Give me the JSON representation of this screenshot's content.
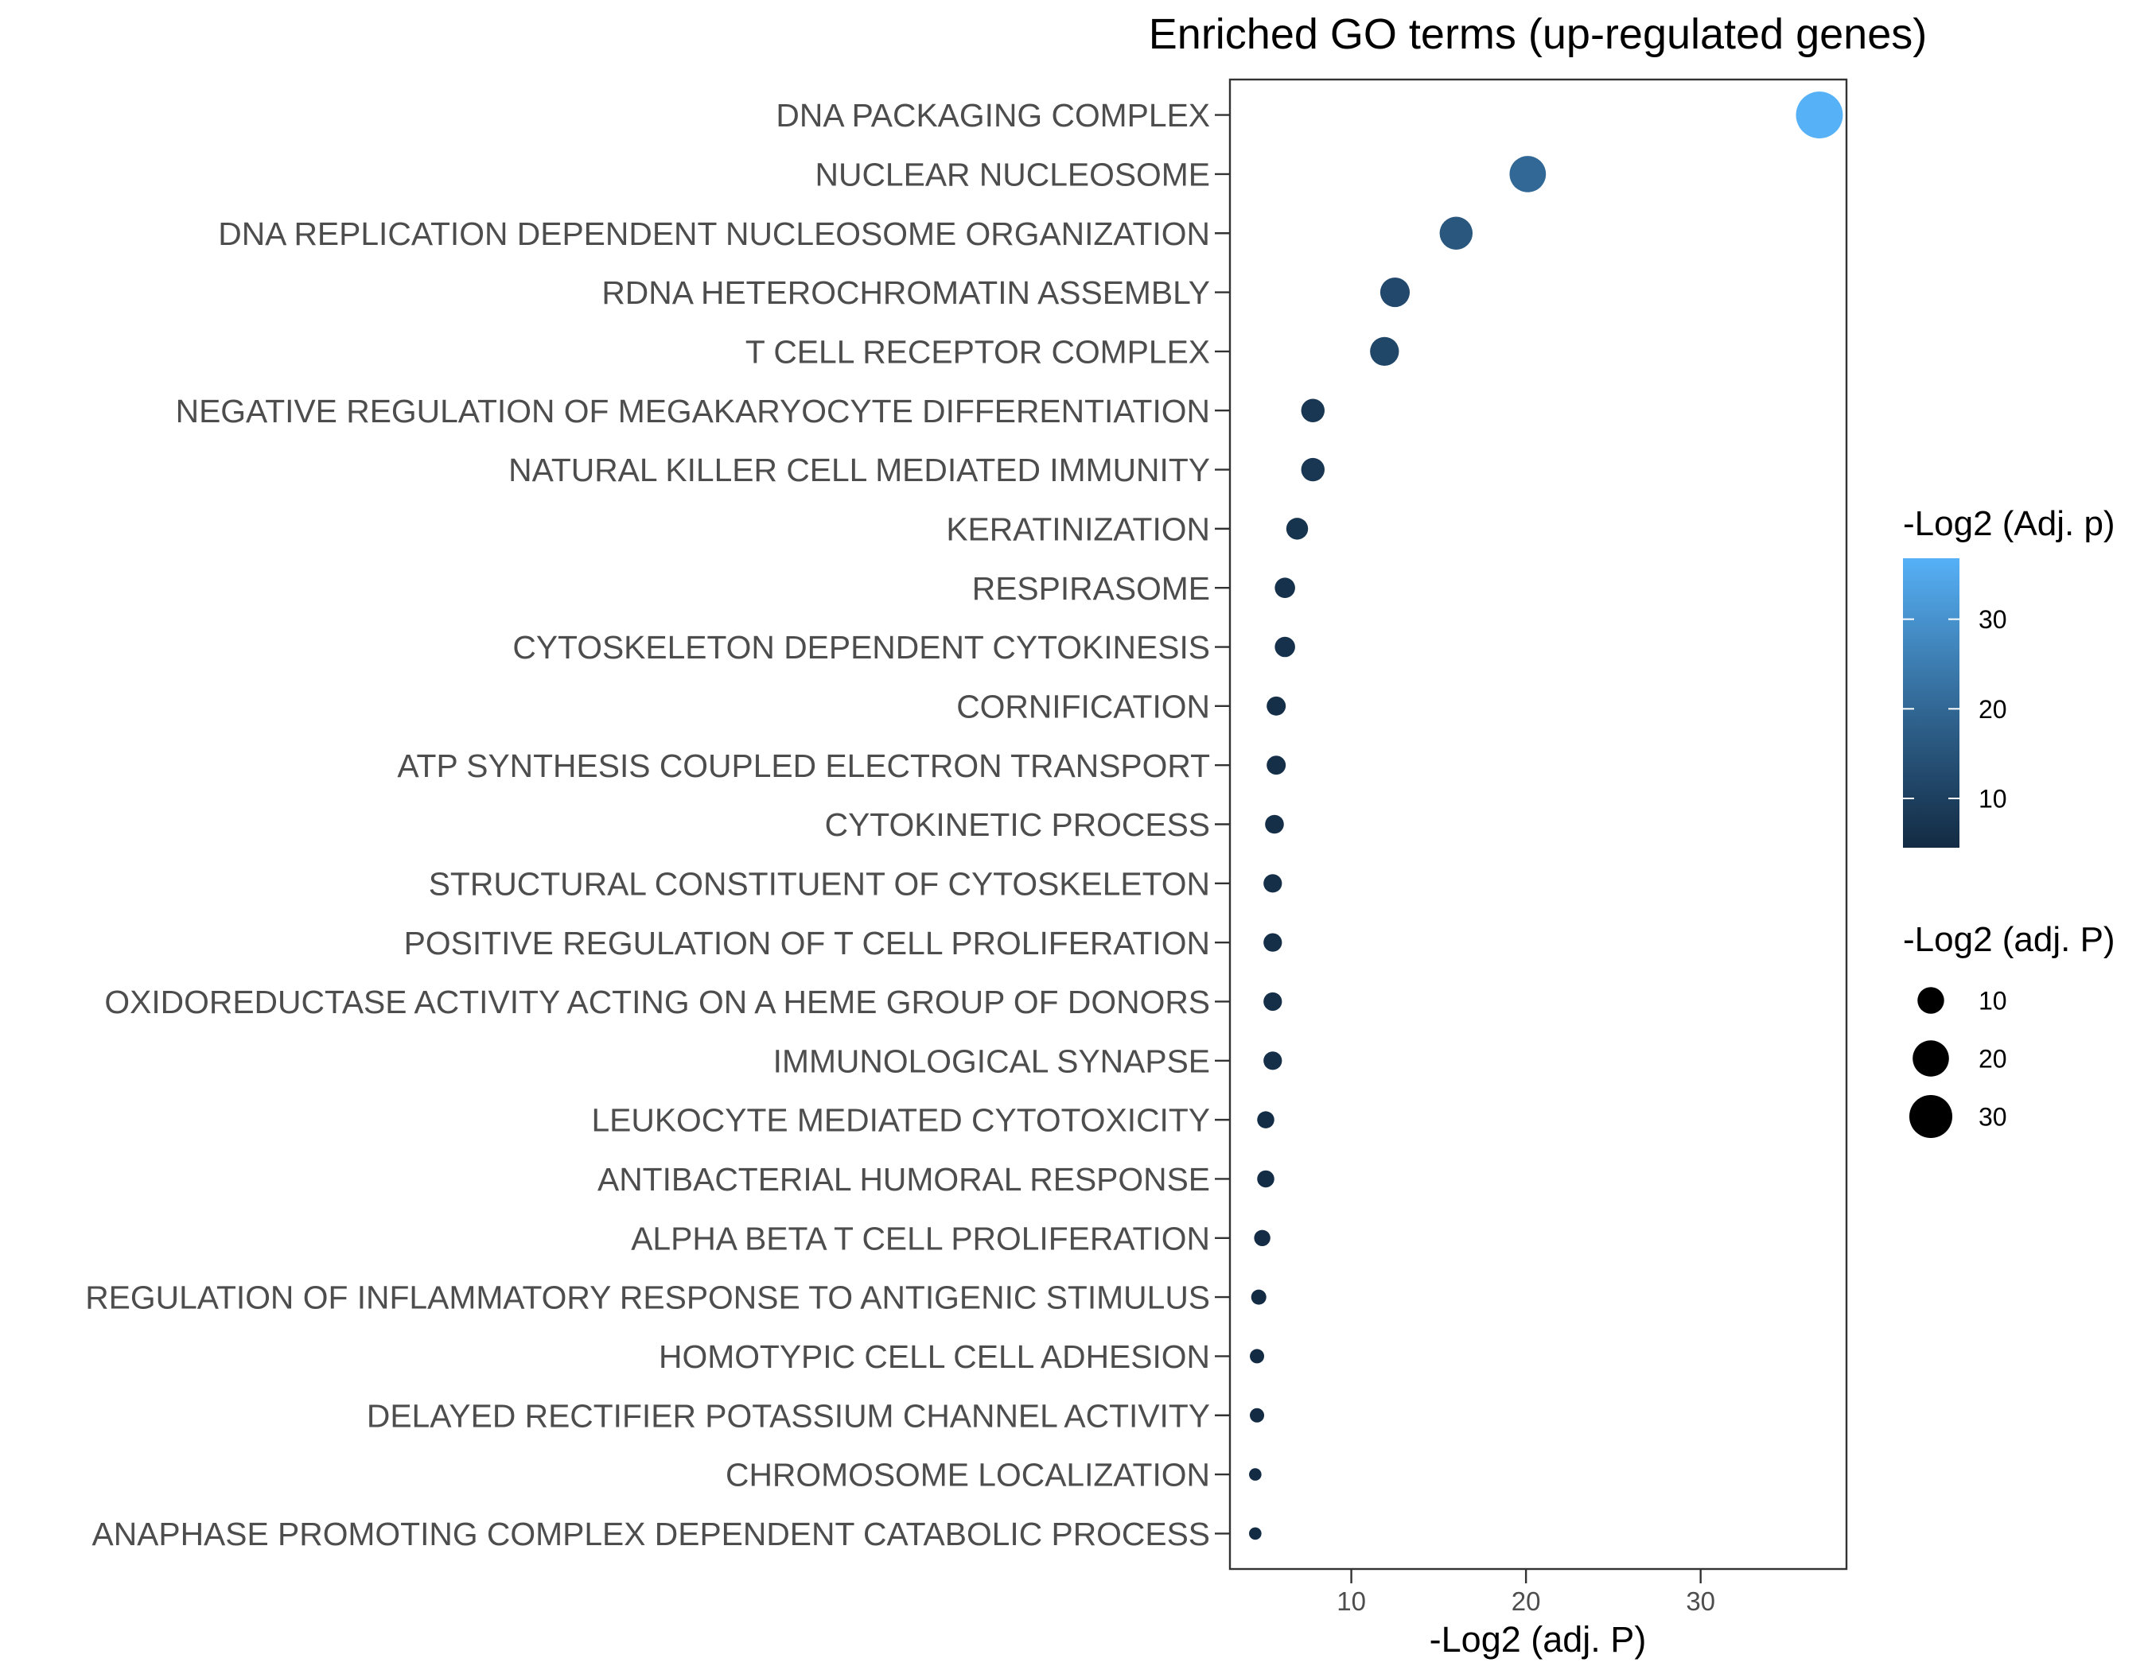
{
  "chart_data": {
    "type": "scatter",
    "title": "Enriched GO terms (up-regulated genes)",
    "xlabel": "-Log2 (adj. P)",
    "ylabel": "",
    "categories": [
      "DNA PACKAGING COMPLEX",
      "NUCLEAR NUCLEOSOME",
      "DNA REPLICATION DEPENDENT NUCLEOSOME ORGANIZATION",
      "RDNA HETEROCHROMATIN ASSEMBLY",
      "T CELL RECEPTOR COMPLEX",
      "NEGATIVE REGULATION OF MEGAKARYOCYTE DIFFERENTIATION",
      "NATURAL KILLER CELL MEDIATED IMMUNITY",
      "KERATINIZATION",
      "RESPIRASOME",
      "CYTOSKELETON DEPENDENT CYTOKINESIS",
      "CORNIFICATION",
      "ATP SYNTHESIS COUPLED ELECTRON TRANSPORT",
      "CYTOKINETIC PROCESS",
      "STRUCTURAL CONSTITUENT OF CYTOSKELETON",
      "POSITIVE REGULATION OF T CELL PROLIFERATION",
      "OXIDOREDUCTASE ACTIVITY ACTING ON A HEME GROUP OF DONORS",
      "IMMUNOLOGICAL SYNAPSE",
      "LEUKOCYTE MEDIATED CYTOTOXICITY",
      "ANTIBACTERIAL HUMORAL RESPONSE",
      "ALPHA BETA T CELL PROLIFERATION",
      "REGULATION OF INFLAMMATORY RESPONSE TO ANTIGENIC STIMULUS",
      "HOMOTYPIC CELL CELL ADHESION",
      "DELAYED RECTIFIER POTASSIUM CHANNEL ACTIVITY",
      "CHROMOSOME LOCALIZATION",
      "ANAPHASE PROMOTING COMPLEX DEPENDENT CATABOLIC PROCESS"
    ],
    "values": [
      36.8,
      20.1,
      16.0,
      12.5,
      11.9,
      7.8,
      7.8,
      6.9,
      6.2,
      6.2,
      5.7,
      5.7,
      5.6,
      5.5,
      5.5,
      5.5,
      5.5,
      5.1,
      5.1,
      4.9,
      4.7,
      4.6,
      4.6,
      4.5,
      4.5
    ],
    "xlim": [
      3.05,
      38.35
    ],
    "xticks": [
      10,
      20,
      30
    ],
    "grid": false,
    "legend_position": "right",
    "color_legend": {
      "title": "-Log2 (Adj. p)",
      "ticks": [
        10,
        20,
        30
      ],
      "low": "#132B43",
      "high": "#56B1F7"
    },
    "size_legend": {
      "title": "-Log2 (adj. P)",
      "values": [
        10,
        20,
        30
      ],
      "key_color": "#000000"
    }
  }
}
